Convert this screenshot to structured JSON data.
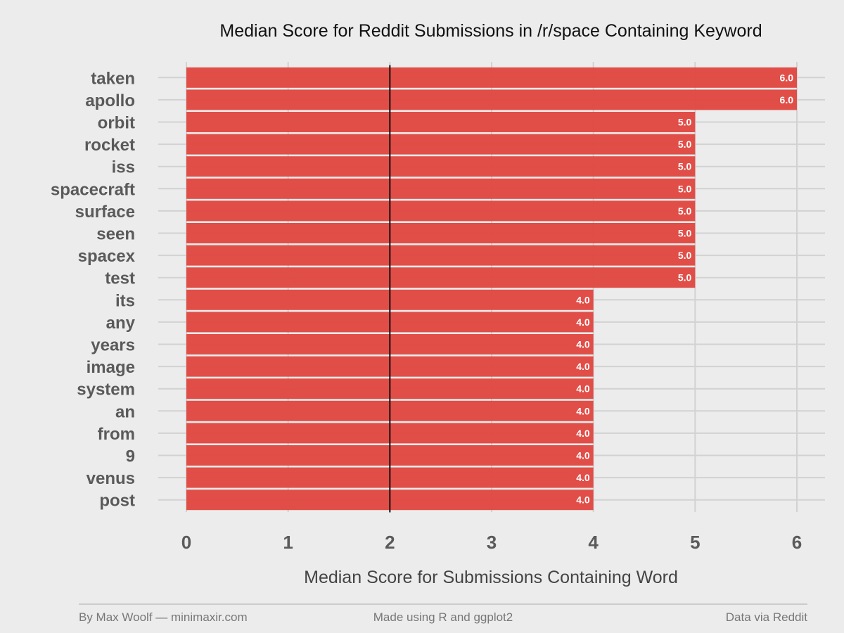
{
  "chart_data": {
    "type": "bar",
    "orientation": "horizontal",
    "title": "Median Score for Reddit Submissions in /r/space Containing Keyword",
    "xlabel": "Median Score for Submissions Containing Word",
    "ylabel": "",
    "categories": [
      "taken",
      "apollo",
      "orbit",
      "rocket",
      "iss",
      "spacecraft",
      "surface",
      "seen",
      "spacex",
      "test",
      "its",
      "any",
      "years",
      "image",
      "system",
      "an",
      "from",
      "9",
      "venus",
      "post"
    ],
    "values": [
      6.0,
      6.0,
      5.0,
      5.0,
      5.0,
      5.0,
      5.0,
      5.0,
      5.0,
      5.0,
      4.0,
      4.0,
      4.0,
      4.0,
      4.0,
      4.0,
      4.0,
      4.0,
      4.0,
      4.0
    ],
    "value_labels": [
      "6.0",
      "6.0",
      "5.0",
      "5.0",
      "5.0",
      "5.0",
      "5.0",
      "5.0",
      "5.0",
      "5.0",
      "4.0",
      "4.0",
      "4.0",
      "4.0",
      "4.0",
      "4.0",
      "4.0",
      "4.0",
      "4.0",
      "4.0"
    ],
    "xlim": [
      0,
      6
    ],
    "x_ticks": [
      "0",
      "1",
      "2",
      "3",
      "4",
      "5",
      "6"
    ],
    "reference_line_x": 2,
    "grid": true,
    "legend": "none",
    "bar_color": "#e0463f",
    "reference_line_color": "#111111"
  },
  "footer": {
    "left": "By Max Woolf — minimaxir.com",
    "center": "Made using R and ggplot2",
    "right": "Data via Reddit"
  },
  "colors": {
    "background": "#ececec",
    "grid": "#d2d2d2",
    "footer_rule": "#aaaaaa"
  }
}
